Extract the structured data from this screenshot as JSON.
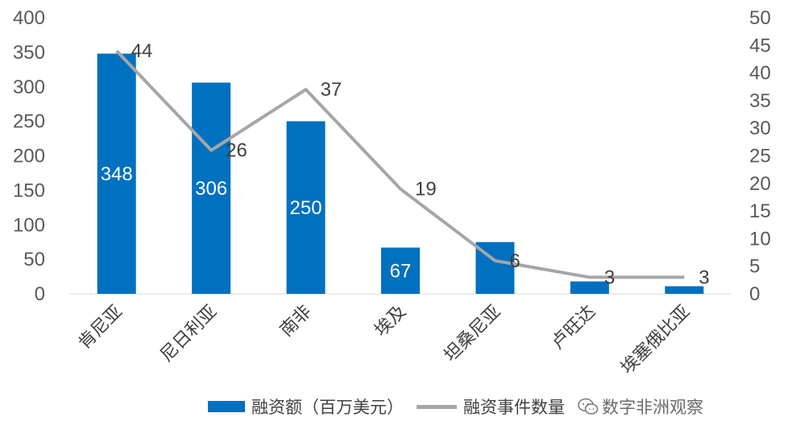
{
  "chart_data": {
    "type": "bar",
    "categories": [
      "肯尼亚",
      "尼日利亚",
      "南非",
      "埃及",
      "坦桑尼亚",
      "卢旺达",
      "埃塞俄比亚"
    ],
    "series": [
      {
        "name": "融资额（百万美元）",
        "type": "bar",
        "axis": "left",
        "values": [
          348,
          306,
          250,
          67,
          75,
          18,
          11
        ],
        "data_labels": [
          "348",
          "306",
          "250",
          "67",
          null,
          null,
          null
        ]
      },
      {
        "name": "融资事件数量",
        "type": "line",
        "axis": "right",
        "values": [
          44,
          26,
          37,
          19,
          6,
          3,
          3
        ],
        "data_labels": [
          "44",
          "26",
          "37",
          "19",
          "6",
          "3",
          "3"
        ]
      }
    ],
    "y_left": {
      "min": 0,
      "max": 400,
      "step": 50
    },
    "y_right": {
      "min": 0,
      "max": 50,
      "step": 5
    },
    "grid": false,
    "legend_position": "bottom",
    "colors": {
      "bar": "#0070c0",
      "line": "#a6a6a6"
    }
  },
  "watermark": {
    "icon": "wechat-icon",
    "text": "数字非洲观察"
  }
}
